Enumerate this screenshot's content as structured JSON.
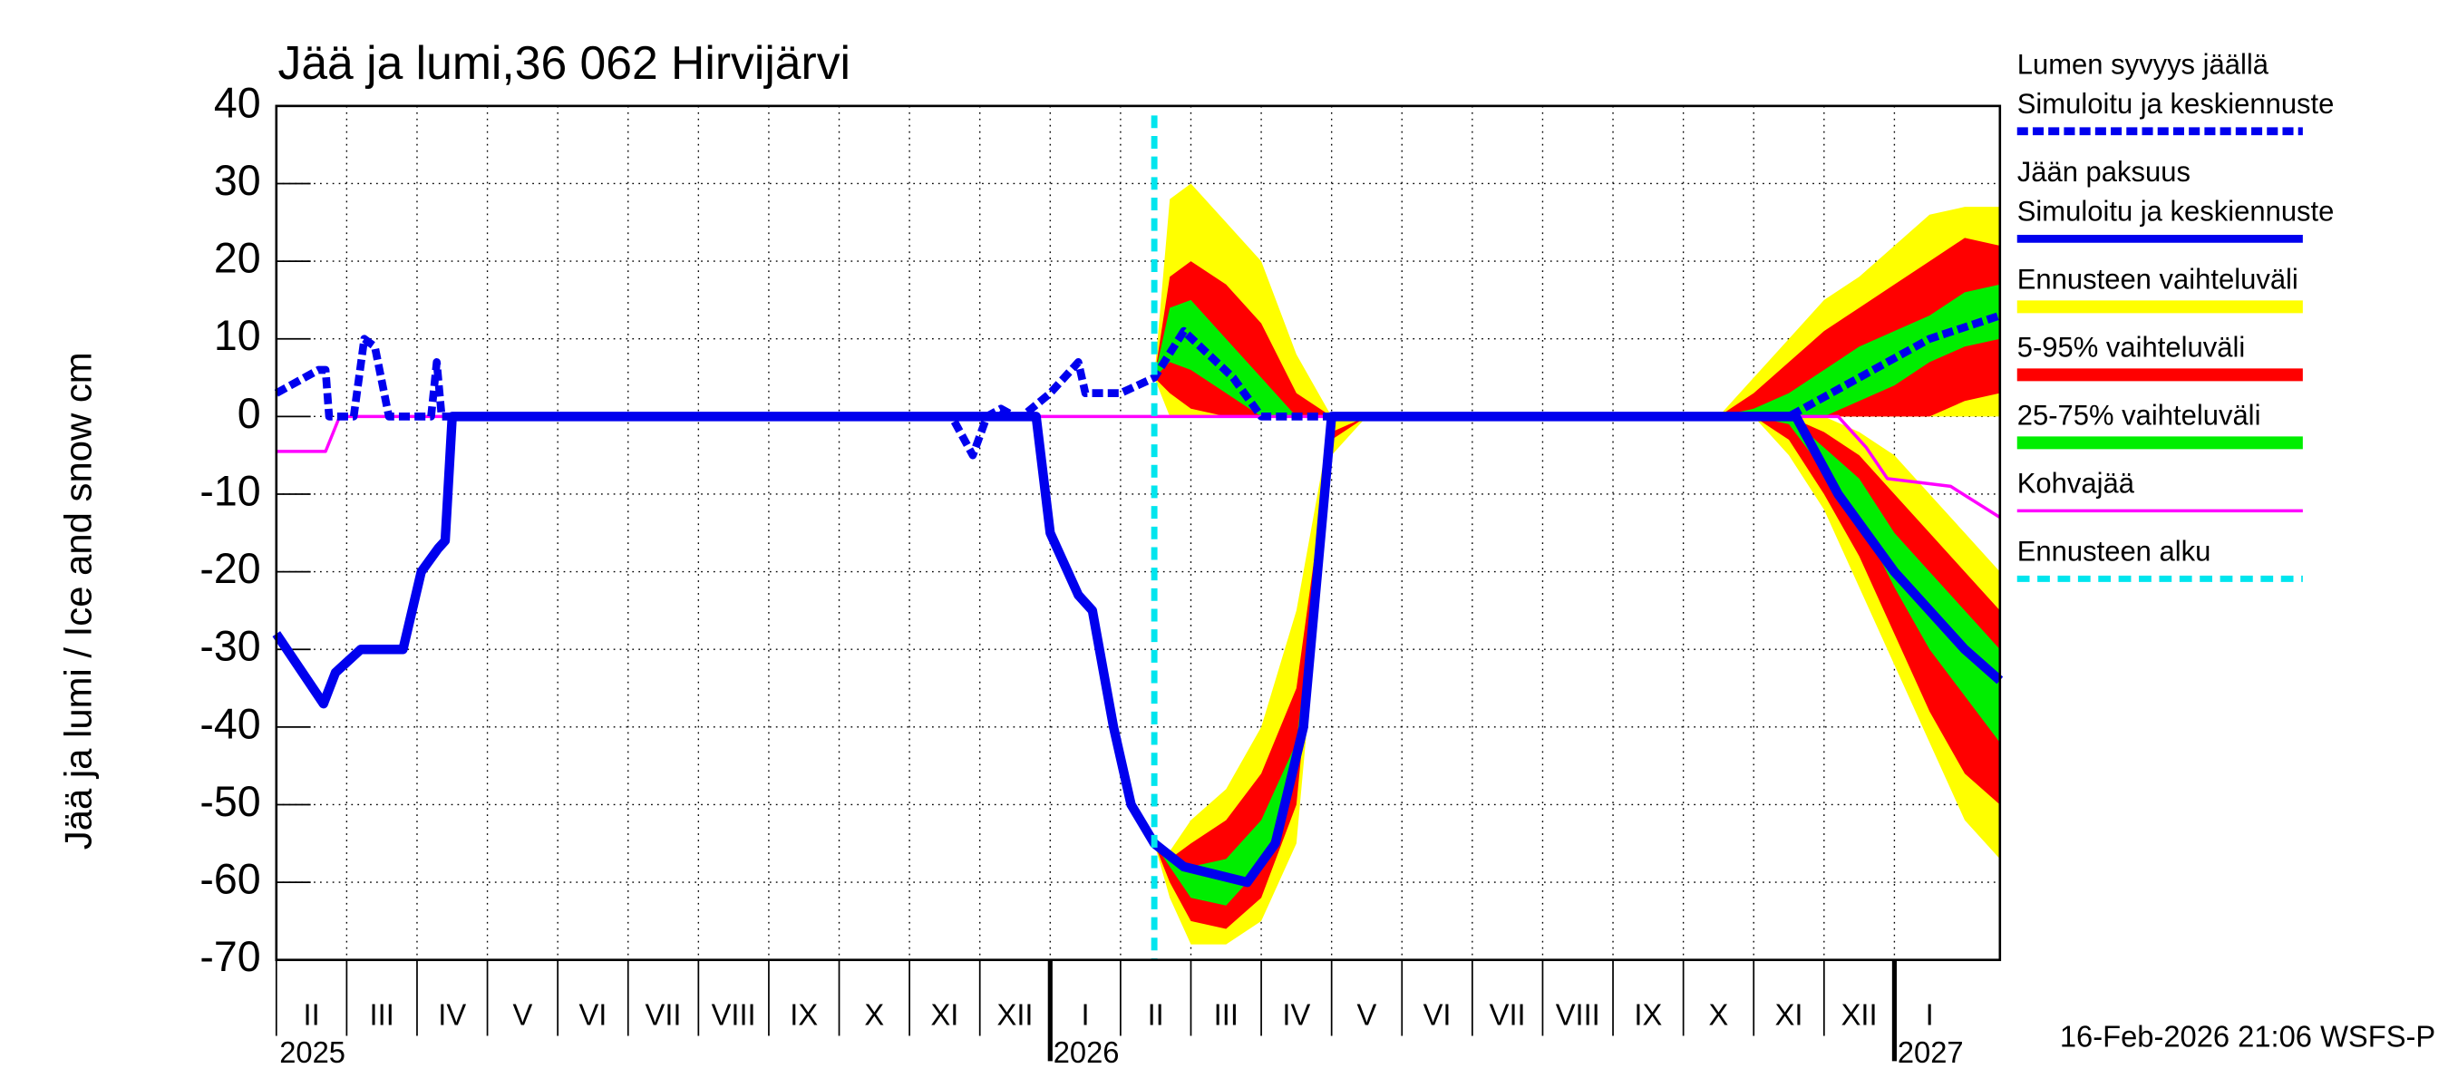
{
  "chart_data": {
    "type": "line",
    "title": "Jää ja lumi,36 062 Hirvijärvi",
    "y_label": "Jää ja lumi / Ice and snow    cm",
    "footer": "16-Feb-2026 21:06 WSFS-P",
    "xlim": [
      0,
      24.5
    ],
    "ylim": [
      -70,
      40
    ],
    "yticks": [
      40,
      30,
      20,
      10,
      0,
      -10,
      -20,
      -30,
      -40,
      -50,
      -60,
      -70
    ],
    "grid": true,
    "categories": [
      "II",
      "III",
      "IV",
      "V",
      "VI",
      "VII",
      "VIII",
      "IX",
      "X",
      "XI",
      "XII",
      "I",
      "II",
      "III",
      "IV",
      "V",
      "VI",
      "VII",
      "VIII",
      "IX",
      "X",
      "XI",
      "XII",
      "I"
    ],
    "years": [
      {
        "value": 0,
        "label": "2025"
      },
      {
        "value": 11,
        "label": "2026"
      },
      {
        "value": 23,
        "label": "2027"
      }
    ],
    "series": [
      {
        "name": "Lumen syvyys jäällä",
        "legend_sub": "Simuloitu ja keskiennuste",
        "color": "#0000ee",
        "style": "dashed",
        "x": [
          0,
          0.6,
          0.7,
          0.75,
          1.1,
          1.25,
          1.4,
          1.6,
          2.2,
          2.28,
          2.35,
          9.6,
          9.9,
          10.1,
          10.3,
          10.5,
          10.6,
          11.0,
          11.4,
          11.5,
          12.0,
          12.48,
          12.9,
          13.6,
          14.0,
          21.5,
          22.5,
          23.5,
          24.5
        ],
        "values": [
          3,
          6,
          6,
          0,
          0,
          10,
          9,
          0,
          0,
          7,
          0,
          0,
          -5,
          0,
          1,
          0,
          0,
          3,
          7,
          3,
          3,
          5,
          11,
          5,
          0,
          0,
          5,
          10,
          13
        ]
      },
      {
        "name": "Jään paksuus",
        "legend_sub": "Simuloitu ja keskiennuste",
        "color": "#0000ee",
        "style": "solid",
        "x": [
          0,
          0.67,
          0.84,
          1.2,
          1.8,
          2.06,
          2.3,
          2.4,
          2.5,
          10.8,
          11.0,
          11.4,
          11.6,
          11.9,
          12.15,
          12.48,
          12.9,
          13.8,
          14.2,
          14.6,
          14.8,
          15.0,
          21.6,
          22.2,
          23.0,
          24.0,
          24.5
        ],
        "values": [
          -28,
          -37,
          -33,
          -30,
          -30,
          -20,
          -17,
          -16,
          0,
          0,
          -15,
          -23,
          -25,
          -40,
          -50,
          -55,
          -58,
          -60,
          -55,
          -40,
          -20,
          0,
          0,
          -10,
          -20,
          -30,
          -34
        ]
      },
      {
        "name": "Kohvajää",
        "color": "#ff00ff",
        "style": "thin",
        "x": [
          0,
          0.7,
          0.9,
          22.2,
          22.6,
          22.9,
          23.8,
          24.5
        ],
        "values": [
          -4.5,
          -4.5,
          0,
          0,
          -4,
          -8,
          -9,
          -13
        ]
      }
    ],
    "band_x": [
      12.48,
      12.7,
      13,
      13.5,
      14,
      14.5,
      15,
      15.5,
      20.5,
      21,
      21.5,
      22,
      22.5,
      23,
      23.5,
      24,
      24.5
    ],
    "bands": [
      {
        "name": "Ennusteen vaihteluväli",
        "color": "#ffff00",
        "snow_upper": [
          5,
          28,
          30,
          25,
          20,
          8,
          0,
          0,
          0,
          5,
          10,
          15,
          18,
          22,
          26,
          27,
          27
        ],
        "snow_lower": [
          5,
          0,
          0,
          0,
          0,
          0,
          0,
          0,
          0,
          0,
          0,
          0,
          0,
          0,
          0,
          0,
          0
        ],
        "ice_upper": [
          -55,
          -56,
          -52,
          -48,
          -40,
          -25,
          0,
          0,
          0,
          0,
          0,
          0,
          -2,
          -5,
          -10,
          -15,
          -20
        ],
        "ice_lower": [
          -55,
          -62,
          -68,
          -68,
          -65,
          -55,
          -5,
          0,
          0,
          0,
          -5,
          -12,
          -22,
          -32,
          -42,
          -52,
          -57
        ]
      },
      {
        "name": "5-95% vaihteluväli",
        "color": "#ff0000",
        "snow_upper": [
          5,
          18,
          20,
          17,
          12,
          3,
          0,
          0,
          0,
          3,
          7,
          11,
          14,
          17,
          20,
          23,
          22
        ],
        "snow_lower": [
          5,
          3,
          1,
          0,
          0,
          0,
          0,
          0,
          0,
          0,
          0,
          0,
          0,
          0,
          0,
          2,
          3
        ],
        "ice_upper": [
          -55,
          -57,
          -55,
          -52,
          -46,
          -35,
          -2,
          0,
          0,
          0,
          0,
          -2,
          -5,
          -10,
          -15,
          -20,
          -25
        ],
        "ice_lower": [
          -55,
          -60,
          -65,
          -66,
          -62,
          -50,
          -3,
          0,
          0,
          0,
          -3,
          -10,
          -18,
          -28,
          -38,
          -46,
          -50
        ]
      },
      {
        "name": "25-75% vaihteluväli",
        "color": "#00ee00",
        "snow_upper": [
          5,
          14,
          15,
          10,
          5,
          0,
          0,
          0,
          0,
          1,
          3,
          6,
          9,
          11,
          13,
          16,
          17
        ],
        "snow_lower": [
          5,
          7,
          6,
          3,
          0,
          0,
          0,
          0,
          0,
          0,
          0,
          0,
          2,
          4,
          7,
          9,
          10
        ],
        "ice_upper": [
          -55,
          -57,
          -58,
          -57,
          -52,
          -42,
          -3,
          0,
          0,
          0,
          0,
          -4,
          -8,
          -15,
          -20,
          -25,
          -30
        ],
        "ice_lower": [
          -55,
          -58,
          -62,
          -63,
          -58,
          -46,
          -3,
          0,
          0,
          0,
          -1,
          -7,
          -13,
          -22,
          -30,
          -36,
          -42
        ]
      }
    ],
    "forecast_start": {
      "x": 12.48,
      "name": "Ennusteen alku",
      "color": "#00e5ee"
    }
  }
}
